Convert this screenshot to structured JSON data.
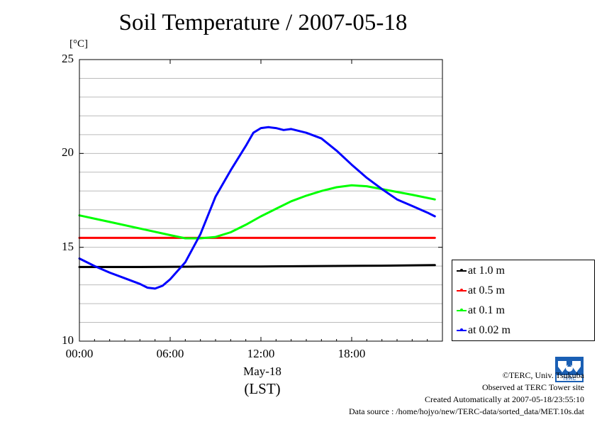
{
  "chart_data": {
    "type": "line",
    "title": "Soil Temperature / 2007-05-18",
    "ylabel": "[°C]",
    "xlabel": "May-18",
    "xlabel2": "(LST)",
    "ylim": [
      10,
      25
    ],
    "xlim_hours": [
      0,
      24
    ],
    "y_ticks": [
      "25",
      "20",
      "15",
      "10"
    ],
    "y_tick_values": [
      25,
      20,
      15,
      10
    ],
    "x_ticks": [
      "00:00",
      "06:00",
      "12:00",
      "18:00"
    ],
    "x_tick_hours": [
      0,
      6,
      12,
      18
    ],
    "grid": true,
    "legend_position": "right",
    "series": [
      {
        "name": "at 1.0 m",
        "color": "#000000",
        "x": [
          0,
          4,
          8,
          12,
          16,
          20,
          23.5
        ],
        "y": [
          13.95,
          13.95,
          13.97,
          13.98,
          14.0,
          14.02,
          14.05
        ]
      },
      {
        "name": "at 0.5 m",
        "color": "#ff0000",
        "x": [
          0,
          4,
          8,
          12,
          16,
          20,
          23.5
        ],
        "y": [
          15.5,
          15.5,
          15.5,
          15.5,
          15.5,
          15.5,
          15.5
        ]
      },
      {
        "name": "at 0.1 m",
        "color": "#00ff00",
        "x": [
          0,
          2,
          4,
          6,
          7,
          8,
          9,
          10,
          11,
          12,
          13,
          14,
          15,
          16,
          17,
          18,
          19,
          20,
          21,
          22,
          23.5
        ],
        "y": [
          16.7,
          16.35,
          16.0,
          15.65,
          15.48,
          15.48,
          15.55,
          15.8,
          16.2,
          16.65,
          17.05,
          17.45,
          17.75,
          18.0,
          18.2,
          18.3,
          18.25,
          18.1,
          17.95,
          17.8,
          17.55
        ]
      },
      {
        "name": "at 0.02 m",
        "color": "#0000ff",
        "x": [
          0,
          1,
          2,
          3,
          4,
          4.5,
          5,
          5.5,
          6,
          7,
          8,
          9,
          10,
          11,
          11.5,
          12,
          12.5,
          13,
          13.5,
          14,
          15,
          16,
          17,
          18,
          19,
          20,
          21,
          22,
          23,
          23.5
        ],
        "y": [
          14.4,
          14.0,
          13.65,
          13.35,
          13.05,
          12.85,
          12.8,
          12.95,
          13.3,
          14.2,
          15.7,
          17.7,
          19.1,
          20.4,
          21.1,
          21.35,
          21.4,
          21.35,
          21.25,
          21.3,
          21.1,
          20.8,
          20.15,
          19.4,
          18.7,
          18.1,
          17.55,
          17.2,
          16.85,
          16.65
        ]
      }
    ]
  },
  "credits": {
    "copyright": "©TERC, Univ. Tsukuba",
    "observed": "Observed at TERC Tower site",
    "created": "Created Automatically at 2007-05-18/23:55:10",
    "source": "Data source : /home/hojyo/new/TERC-data/sorted_data/MET.10s.dat"
  },
  "logo_text": "TERC"
}
